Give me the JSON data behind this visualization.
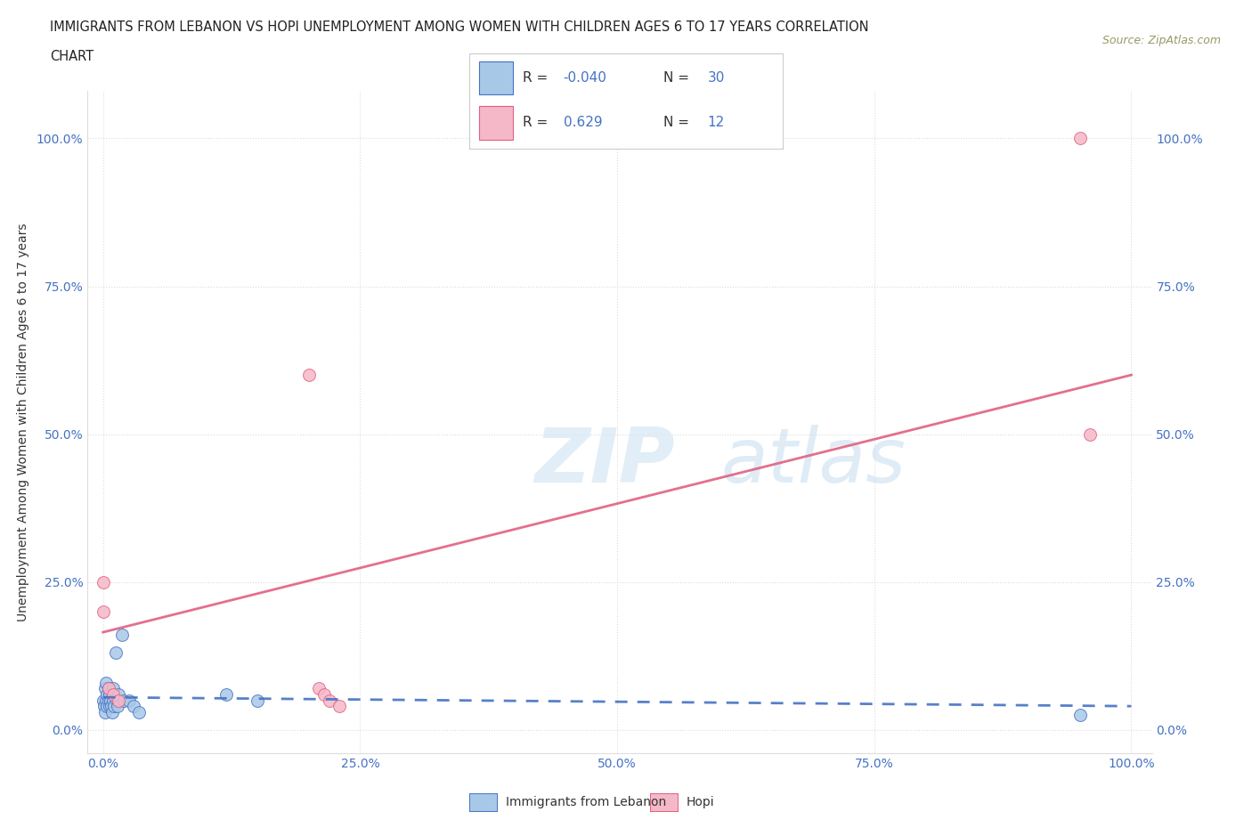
{
  "title_line1": "IMMIGRANTS FROM LEBANON VS HOPI UNEMPLOYMENT AMONG WOMEN WITH CHILDREN AGES 6 TO 17 YEARS CORRELATION",
  "title_line2": "CHART",
  "source": "Source: ZipAtlas.com",
  "ylabel": "Unemployment Among Women with Children Ages 6 to 17 years",
  "blue_label": "Immigrants from Lebanon",
  "pink_label": "Hopi",
  "blue_R": -0.04,
  "blue_N": 30,
  "pink_R": 0.629,
  "pink_N": 12,
  "blue_color": "#a8c8e8",
  "pink_color": "#f5b8c8",
  "blue_line_color": "#4472c4",
  "pink_line_color": "#e06080",
  "blue_x": [
    0.0,
    0.001,
    0.002,
    0.002,
    0.003,
    0.003,
    0.004,
    0.004,
    0.005,
    0.005,
    0.006,
    0.006,
    0.007,
    0.008,
    0.009,
    0.01,
    0.01,
    0.011,
    0.012,
    0.013,
    0.014,
    0.015,
    0.018,
    0.02,
    0.025,
    0.03,
    0.035,
    0.12,
    0.15,
    0.95
  ],
  "blue_y": [
    0.05,
    0.04,
    0.03,
    0.07,
    0.05,
    0.08,
    0.04,
    0.06,
    0.05,
    0.07,
    0.04,
    0.06,
    0.05,
    0.04,
    0.03,
    0.05,
    0.07,
    0.04,
    0.13,
    0.05,
    0.04,
    0.06,
    0.16,
    0.05,
    0.05,
    0.04,
    0.03,
    0.06,
    0.05,
    0.025
  ],
  "pink_x": [
    0.0,
    0.0,
    0.005,
    0.01,
    0.015,
    0.2,
    0.21,
    0.215,
    0.22,
    0.23,
    0.95,
    0.96
  ],
  "pink_y": [
    0.25,
    0.2,
    0.07,
    0.06,
    0.05,
    0.6,
    0.07,
    0.06,
    0.05,
    0.04,
    1.0,
    0.5
  ],
  "xlim": [
    -0.015,
    1.02
  ],
  "ylim": [
    -0.04,
    1.08
  ],
  "xticks": [
    0.0,
    0.25,
    0.5,
    0.75,
    1.0
  ],
  "yticks": [
    0.0,
    0.25,
    0.5,
    0.75,
    1.0
  ],
  "xticklabels": [
    "0.0%",
    "25.0%",
    "50.0%",
    "75.0%",
    "100.0%"
  ],
  "yticklabels": [
    "0.0%",
    "25.0%",
    "50.0%",
    "75.0%",
    "100.0%"
  ],
  "background_color": "#ffffff",
  "grid_color": "#cccccc",
  "blue_trend": [
    0.0,
    1.0,
    0.055,
    0.04
  ],
  "pink_trend": [
    0.0,
    1.0,
    0.165,
    0.6
  ]
}
